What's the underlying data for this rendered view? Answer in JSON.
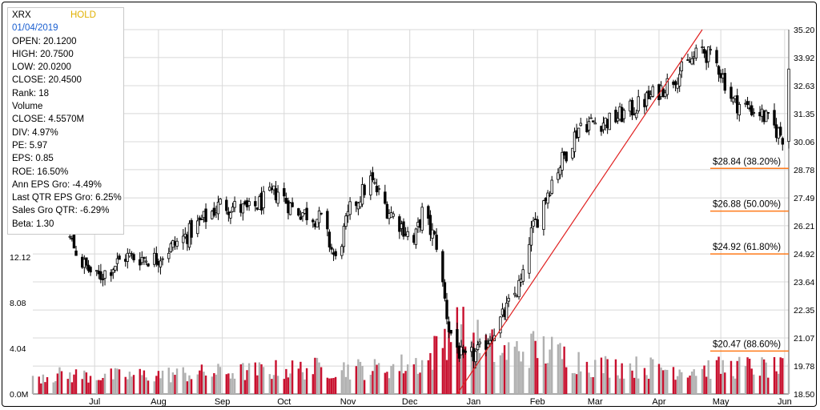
{
  "info": {
    "ticker": "XRX",
    "rating": "HOLD",
    "date": "01/04/2019",
    "rows": [
      "OPEN: 20.1200",
      "HIGH: 20.7500",
      "LOW: 20.0200",
      "CLOSE: 20.4500",
      "Rank: 18",
      "Volume",
      "CLOSE: 4.5570M",
      "DIV: 4.97%",
      "PE: 5.97",
      "EPS: 0.85",
      "ROE: 16.50%",
      "Ann EPS Gro: -4.49%",
      "Last QTR EPS Gro: 6.25%",
      "Sales Gro QTR: -6.29%",
      "Beta: 1.30"
    ]
  },
  "chart_data": {
    "type": "candlestick",
    "x_labels": [
      "Jul",
      "Aug",
      "Sep",
      "Oct",
      "Nov",
      "Dec",
      "Jan",
      "Feb",
      "Mar",
      "Apr",
      "May",
      "Jun"
    ],
    "price_axis": {
      "ticks": [
        "35.20",
        "33.92",
        "32.63",
        "31.35",
        "30.06",
        "28.78",
        "27.49",
        "26.21",
        "24.92",
        "23.64",
        "22.35",
        "21.07",
        "19.78",
        "18.50"
      ],
      "range": [
        18.5,
        35.2
      ]
    },
    "volume_axis": {
      "ticks": [
        "12.12",
        "8.08",
        "4.04",
        "0.0M"
      ],
      "range_millions": [
        0,
        12.12
      ]
    },
    "price_anchors": [
      [
        "2018-06-01",
        26.9
      ],
      [
        "2018-06-15",
        26.4
      ],
      [
        "2018-06-25",
        24.5
      ],
      [
        "2018-07-02",
        23.8
      ],
      [
        "2018-07-16",
        24.8
      ],
      [
        "2018-07-31",
        24.7
      ],
      [
        "2018-08-15",
        25.8
      ],
      [
        "2018-08-31",
        27.2
      ],
      [
        "2018-09-14",
        26.9
      ],
      [
        "2018-09-28",
        27.8
      ],
      [
        "2018-10-05",
        27.0
      ],
      [
        "2018-10-19",
        26.5
      ],
      [
        "2018-10-26",
        24.6
      ],
      [
        "2018-11-02",
        26.9
      ],
      [
        "2018-11-12",
        28.3
      ],
      [
        "2018-11-20",
        27.0
      ],
      [
        "2018-11-29",
        26.0
      ],
      [
        "2018-12-03",
        25.4
      ],
      [
        "2018-12-07",
        26.8
      ],
      [
        "2018-12-14",
        25.4
      ],
      [
        "2018-12-20",
        21.5
      ],
      [
        "2018-12-27",
        20.0
      ],
      [
        "2019-01-04",
        20.45
      ],
      [
        "2019-01-15",
        22.0
      ],
      [
        "2019-01-25",
        23.8
      ],
      [
        "2019-01-28",
        25.6
      ],
      [
        "2019-02-08",
        28.3
      ],
      [
        "2019-02-22",
        30.9
      ],
      [
        "2019-03-08",
        31.0
      ],
      [
        "2019-03-20",
        31.6
      ],
      [
        "2019-04-01",
        32.4
      ],
      [
        "2019-04-12",
        33.3
      ],
      [
        "2019-04-22",
        34.3
      ],
      [
        "2019-04-30",
        33.5
      ],
      [
        "2019-05-07",
        31.9
      ],
      [
        "2019-05-20",
        31.4
      ],
      [
        "2019-05-31",
        30.3
      ],
      [
        "2019-06-03",
        33.5
      ]
    ],
    "volume_anchors_millions": [
      [
        "2018-06-01",
        1.7
      ],
      [
        "2018-07-15",
        1.6
      ],
      [
        "2018-09-01",
        1.9
      ],
      [
        "2018-10-20",
        2.3
      ],
      [
        "2018-11-15",
        2.2
      ],
      [
        "2018-12-10",
        2.9
      ],
      [
        "2018-12-21",
        6.0
      ],
      [
        "2019-01-15",
        3.6
      ],
      [
        "2019-02-01",
        4.1
      ],
      [
        "2019-03-01",
        2.5
      ],
      [
        "2019-04-15",
        2.2
      ],
      [
        "2019-05-15",
        2.4
      ],
      [
        "2019-06-03",
        2.2
      ]
    ],
    "volume_up_color": "#b0b0b0",
    "volume_down_color": "#c8102e",
    "trendline": {
      "color": "#e02020",
      "from": [
        "2018-12-24",
        18.5
      ],
      "to": [
        "2019-04-22",
        35.2
      ]
    },
    "fib_color": "#ff7a1a",
    "fib_levels": [
      {
        "label": "$28.84 (38.20%)",
        "price": 28.84
      },
      {
        "label": "$26.88 (50.00%)",
        "price": 26.88
      },
      {
        "label": "$24.92 (61.80%)",
        "price": 24.92
      },
      {
        "label": "$20.47 (88.60%)",
        "price": 20.47
      }
    ]
  }
}
